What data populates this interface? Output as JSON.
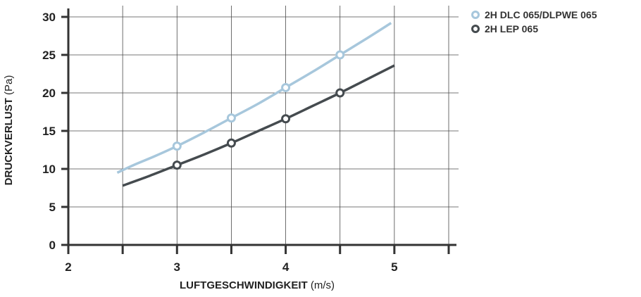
{
  "chart_data": {
    "type": "line",
    "xlabel_bold": "LUFTGESCHWINDIGKEIT",
    "xlabel_unit": "(m/s)",
    "ylabel_bold": "DRUCKVERLUST",
    "ylabel_unit": "(Pa)",
    "xlim": [
      2,
      5.5
    ],
    "ylim": [
      0,
      30
    ],
    "x_ticks": [
      2,
      2.5,
      3,
      3.5,
      4,
      4.5,
      5,
      5.5
    ],
    "x_tick_labels": [
      "2",
      "",
      "3",
      "",
      "4",
      "",
      "5",
      ""
    ],
    "y_ticks": [
      0,
      5,
      10,
      15,
      20,
      25,
      30
    ],
    "y_tick_labels": [
      "0",
      "5",
      "10",
      "15",
      "20",
      "25",
      "30"
    ],
    "grid": true,
    "legend_position": "top-right",
    "series": [
      {
        "name": "2H DLC 065/DLPWE 065",
        "color": "#a7c7dc",
        "curve_x": [
          2.45,
          2.6,
          2.8,
          3.0,
          3.25,
          3.5,
          3.75,
          4.0,
          4.25,
          4.5,
          4.75,
          4.97
        ],
        "curve_y": [
          9.5,
          10.5,
          11.7,
          13.0,
          14.8,
          16.7,
          18.6,
          20.7,
          22.8,
          25.0,
          27.2,
          29.2
        ],
        "marker_x": [
          3.0,
          3.5,
          4.0,
          4.5
        ],
        "marker_y": [
          13.0,
          16.7,
          20.7,
          25.0
        ]
      },
      {
        "name": "2H LEP 065",
        "color": "#454b4f",
        "curve_x": [
          2.5,
          2.75,
          3.0,
          3.25,
          3.5,
          3.75,
          4.0,
          4.25,
          4.5,
          4.75,
          5.0
        ],
        "curve_y": [
          7.8,
          9.1,
          10.5,
          11.9,
          13.4,
          15.0,
          16.6,
          18.3,
          20.0,
          21.8,
          23.6
        ],
        "marker_x": [
          3.0,
          3.5,
          4.0,
          4.5
        ],
        "marker_y": [
          10.5,
          13.4,
          16.6,
          20.0
        ]
      }
    ]
  }
}
